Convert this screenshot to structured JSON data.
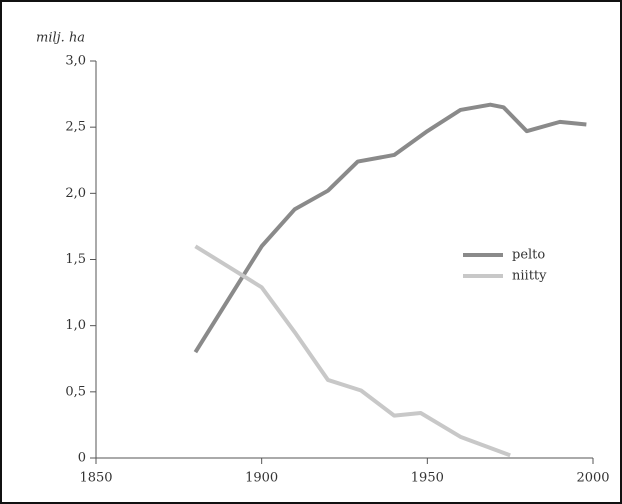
{
  "chart_data": {
    "type": "line",
    "y_label": "milj. ha",
    "xlim": [
      1850,
      2000
    ],
    "xticks": [
      1850,
      1900,
      1950,
      2000
    ],
    "ylim": [
      0,
      3.0
    ],
    "yticks": [
      0,
      {
        "value": 0.5,
        "label": "0,5"
      },
      {
        "value": 1.0,
        "label": "1,0"
      },
      {
        "value": 1.5,
        "label": "1,5"
      },
      {
        "value": 2.0,
        "label": "2,0"
      },
      {
        "value": 2.5,
        "label": "2,5"
      },
      {
        "value": 3.0,
        "label": "3,0"
      }
    ],
    "legend": "right",
    "series": [
      {
        "name": "pelto",
        "color": "#8a8a8a",
        "x": [
          1880,
          1890,
          1900,
          1910,
          1920,
          1929,
          1940,
          1950,
          1960,
          1969,
          1973,
          1980,
          1990,
          1998
        ],
        "values": [
          0.8,
          1.2,
          1.6,
          1.88,
          2.02,
          2.24,
          2.29,
          2.47,
          2.63,
          2.67,
          2.65,
          2.47,
          2.54,
          2.52
        ]
      },
      {
        "name": "niitty",
        "color": "#c8c8c8",
        "x": [
          1880,
          1900,
          1910,
          1920,
          1930,
          1940,
          1948,
          1960,
          1975
        ],
        "values": [
          1.6,
          1.29,
          0.95,
          0.59,
          0.51,
          0.32,
          0.34,
          0.16,
          0.02
        ]
      }
    ]
  }
}
